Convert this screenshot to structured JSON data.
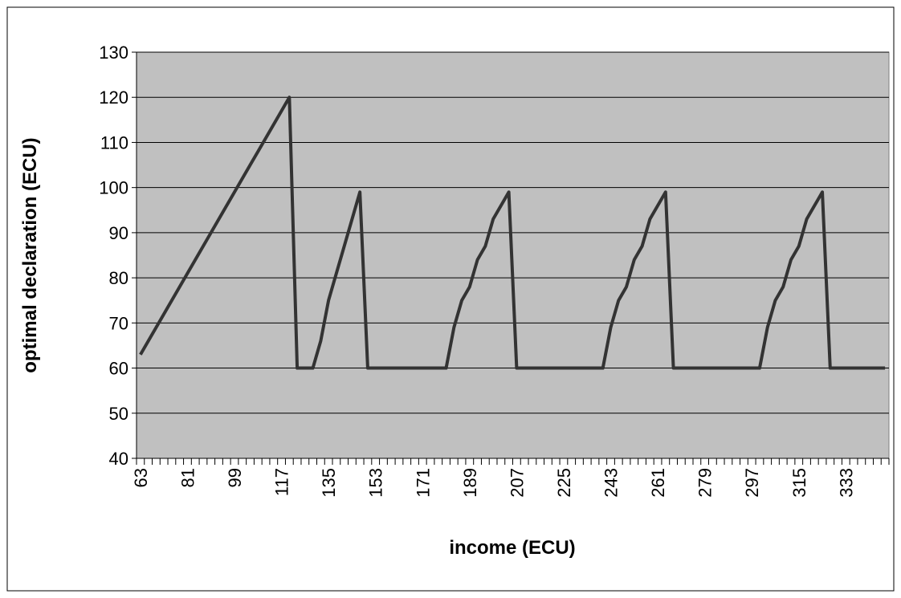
{
  "chart_data": {
    "type": "line",
    "x_label": "income (ECU)",
    "y_label": "optimal declaration (ECU)",
    "categories": [
      "63",
      null,
      null,
      null,
      null,
      null,
      "81",
      null,
      null,
      null,
      null,
      null,
      "99",
      null,
      null,
      null,
      null,
      null,
      "117",
      null,
      null,
      null,
      null,
      null,
      "135",
      null,
      null,
      null,
      null,
      null,
      "153",
      null,
      null,
      null,
      null,
      null,
      "171",
      null,
      null,
      null,
      null,
      null,
      "189",
      null,
      null,
      null,
      null,
      null,
      "207",
      null,
      null,
      null,
      null,
      null,
      "225",
      null,
      null,
      null,
      null,
      null,
      "243",
      null,
      null,
      null,
      null,
      null,
      "261",
      null,
      null,
      null,
      null,
      null,
      "279",
      null,
      null,
      null,
      null,
      null,
      "297",
      null,
      null,
      null,
      null,
      null,
      "315",
      null,
      null,
      null,
      null,
      null,
      "333",
      null,
      null,
      null,
      null,
      null
    ],
    "values": [
      63,
      66,
      69,
      72,
      75,
      78,
      81,
      84,
      87,
      90,
      93,
      96,
      99,
      102,
      105,
      108,
      111,
      114,
      117,
      120,
      60,
      60,
      60,
      66,
      75,
      81,
      87,
      93,
      99,
      60,
      60,
      60,
      60,
      60,
      60,
      60,
      60,
      60,
      60,
      60,
      69,
      75,
      78,
      84,
      87,
      93,
      96,
      99,
      60,
      60,
      60,
      60,
      60,
      60,
      60,
      60,
      60,
      60,
      60,
      60,
      69,
      75,
      78,
      84,
      87,
      93,
      96,
      99,
      60,
      60,
      60,
      60,
      60,
      60,
      60,
      60,
      60,
      60,
      60,
      60,
      69,
      75,
      78,
      84,
      87,
      93,
      96,
      99,
      60,
      60,
      60,
      60,
      60,
      60,
      60,
      60
    ],
    "color": "#333333",
    "plot_background": "#c0c0c0",
    "ylim": [
      40,
      130
    ],
    "yticks": [
      40,
      50,
      60,
      70,
      80,
      90,
      100,
      110,
      120,
      130
    ],
    "grid": true
  }
}
